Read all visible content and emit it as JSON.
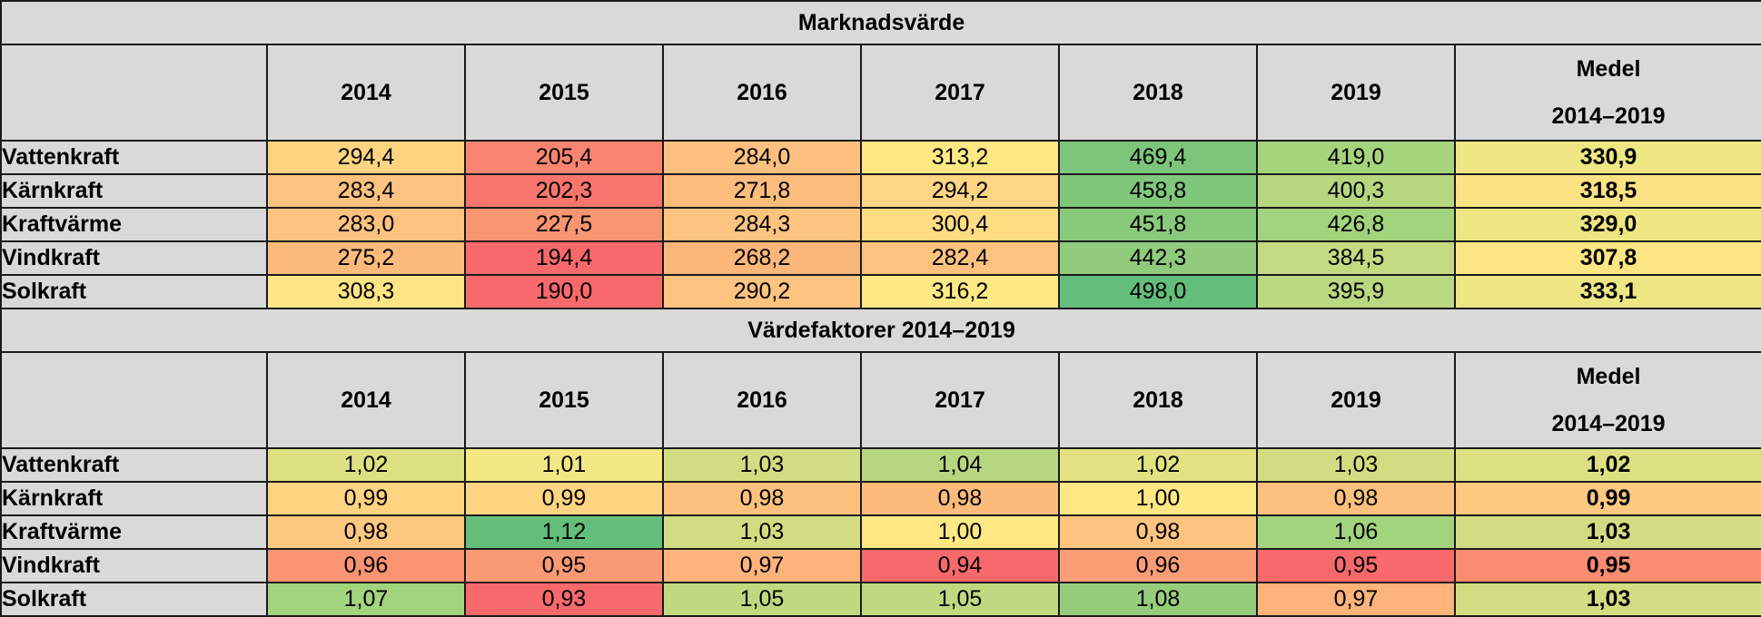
{
  "section1": {
    "title": "Marknadsvärde",
    "years": [
      "2014",
      "2015",
      "2016",
      "2017",
      "2018",
      "2019"
    ],
    "avg_label_line1": "Medel",
    "avg_label_line2": "2014–2019",
    "rows": [
      {
        "label": "Vattenkraft",
        "values": [
          "294,4",
          "205,4",
          "284,0",
          "313,2",
          "469,4",
          "419,0"
        ],
        "avg": "330,9",
        "colors": [
          "#fed480",
          "#f98570",
          "#fdc07f",
          "#fee883",
          "#7cc57a",
          "#a6d47d"
        ],
        "avg_color": "#eee683"
      },
      {
        "label": "Kärnkraft",
        "values": [
          "283,4",
          "202,3",
          "271,8",
          "294,2",
          "458,8",
          "400,3"
        ],
        "avg": "318,5",
        "colors": [
          "#fdc27f",
          "#f8756d",
          "#fcbc7c",
          "#fed582",
          "#80c77b",
          "#b6d780"
        ],
        "avg_color": "#fde383"
      },
      {
        "label": "Kraftvärme",
        "values": [
          "283,0",
          "227,5",
          "284,3",
          "300,4",
          "451,8",
          "426,8"
        ],
        "avg": "329,0",
        "colors": [
          "#fdc27f",
          "#fa9571",
          "#fdc47f",
          "#fddc82",
          "#89c97b",
          "#a2d37d"
        ],
        "avg_color": "#eee683"
      },
      {
        "label": "Vindkraft",
        "values": [
          "275,2",
          "194,4",
          "268,2",
          "282,4",
          "442,3",
          "384,5"
        ],
        "avg": "307,8",
        "colors": [
          "#fcbb7b",
          "#f8696b",
          "#fbb67a",
          "#fdc37e",
          "#90cb7c",
          "#c3da80"
        ],
        "avg_color": "#fee583"
      },
      {
        "label": "Solkraft",
        "values": [
          "308,3",
          "190,0",
          "290,2",
          "316,2",
          "498,0",
          "395,9"
        ],
        "avg": "333,1",
        "colors": [
          "#fee583",
          "#f8696b",
          "#fdc47f",
          "#fee883",
          "#63be7b",
          "#bad880"
        ],
        "avg_color": "#eee683"
      }
    ]
  },
  "section2": {
    "title": "Värdefaktorer 2014–2019",
    "years": [
      "2014",
      "2015",
      "2016",
      "2017",
      "2018",
      "2019"
    ],
    "avg_label_line1": "Medel",
    "avg_label_line2": "2014–2019",
    "rows": [
      {
        "label": "Vattenkraft",
        "values": [
          "1,02",
          "1,01",
          "1,03",
          "1,04",
          "1,02",
          "1,03"
        ],
        "avg": "1,02",
        "colors": [
          "#dde182",
          "#f3e884",
          "#d2dd81",
          "#b6d680",
          "#e2e282",
          "#d2dd81"
        ],
        "avg_color": "#dde182"
      },
      {
        "label": "Kärnkraft",
        "values": [
          "0,99",
          "0,99",
          "0,98",
          "0,98",
          "1,00",
          "0,98"
        ],
        "avg": "0,99",
        "colors": [
          "#fed481",
          "#fed481",
          "#fcc27d",
          "#fcbb7b",
          "#fee883",
          "#fcc27d"
        ],
        "avg_color": "#fdc87f"
      },
      {
        "label": "Kraftvärme",
        "values": [
          "0,98",
          "1,12",
          "1,03",
          "1,00",
          "0,98",
          "1,06"
        ],
        "avg": "1,03",
        "colors": [
          "#fdc87f",
          "#63be7b",
          "#d2dd81",
          "#fee883",
          "#fdc47f",
          "#a2d37d"
        ],
        "avg_color": "#d2dd81"
      },
      {
        "label": "Vindkraft",
        "values": [
          "0,96",
          "0,95",
          "0,97",
          "0,94",
          "0,96",
          "0,95"
        ],
        "avg": "0,95",
        "colors": [
          "#fa9473",
          "#fa9a74",
          "#fcb47a",
          "#f8696b",
          "#fa9d75",
          "#f8696b"
        ],
        "avg_color": "#fa8c71"
      },
      {
        "label": "Solkraft",
        "values": [
          "1,07",
          "0,93",
          "1,05",
          "1,05",
          "1,08",
          "0,97"
        ],
        "avg": "1,03",
        "colors": [
          "#a2d37d",
          "#f8696b",
          "#c0d980",
          "#c0d980",
          "#96cd7d",
          "#fcb47a"
        ],
        "avg_color": "#d2dd81"
      }
    ]
  }
}
